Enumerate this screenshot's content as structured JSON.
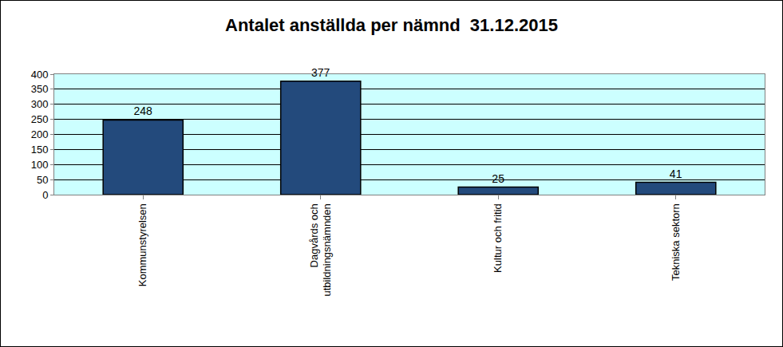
{
  "chart_data": {
    "type": "bar",
    "title": "Antalet anställda per nämnd  31.12.2015",
    "categories": [
      "Kommunstyrelsen",
      "Dagvårds och\nutbildningsnämnden",
      "Kultur och fritid",
      "Tekniska sektorn"
    ],
    "values": [
      248,
      377,
      25,
      41
    ],
    "color": "#234a7c",
    "ylim": [
      0,
      400
    ],
    "yticks": [
      0,
      50,
      100,
      150,
      200,
      250,
      300,
      350,
      400
    ],
    "grid": true,
    "data_labels": true
  }
}
